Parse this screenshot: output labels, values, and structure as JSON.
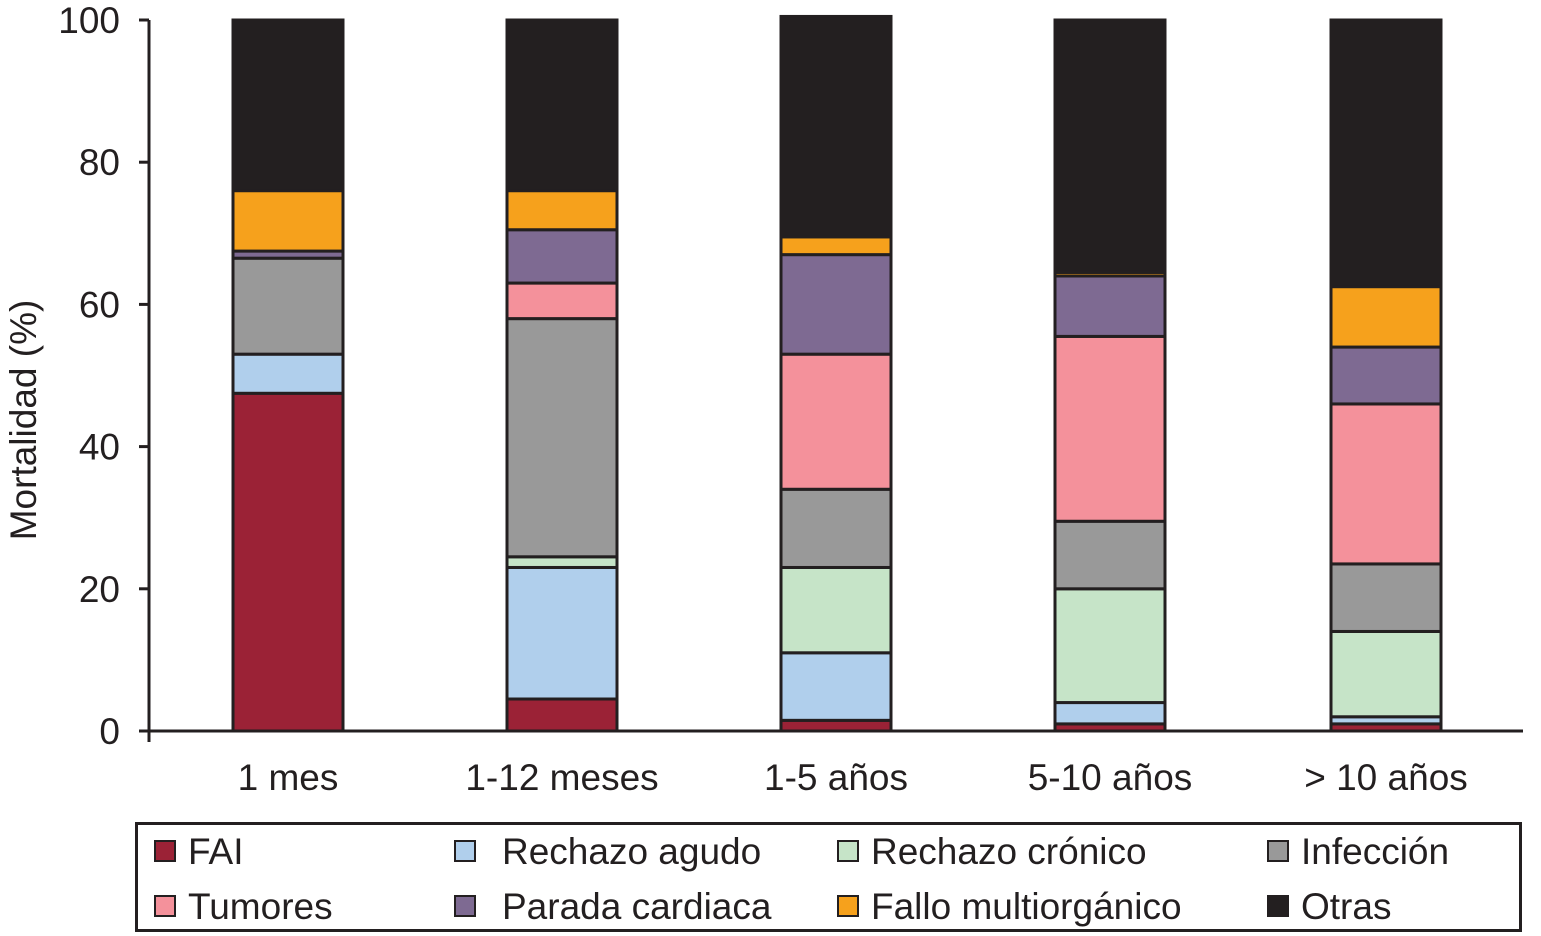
{
  "chart_data": {
    "type": "bar",
    "stacked": true,
    "title": "",
    "xlabel": "",
    "ylabel": "Mortalidad (%)",
    "ylim": [
      0,
      100
    ],
    "yticks": [
      0,
      20,
      40,
      60,
      80,
      100
    ],
    "grid": false,
    "legend_position": "bottom",
    "categories": [
      "1 mes",
      "1-12 meses",
      "1-5 años",
      "5-10 años",
      "> 10 años"
    ],
    "series": [
      {
        "name": "FAI",
        "color": "#9b2236",
        "values": [
          47.5,
          4.5,
          1.5,
          1.0,
          1.0
        ]
      },
      {
        "name": "Rechazo agudo",
        "color": "#b0cfec",
        "values": [
          5.5,
          18.5,
          9.5,
          3.0,
          1.0
        ]
      },
      {
        "name": "Rechazo crónico",
        "color": "#c6e4c8",
        "values": [
          0.0,
          1.5,
          12.0,
          16.0,
          12.0
        ]
      },
      {
        "name": "Infección",
        "color": "#999999",
        "values": [
          13.5,
          33.5,
          11.0,
          9.5,
          9.5
        ]
      },
      {
        "name": "Tumores",
        "color": "#f4919b",
        "values": [
          0.0,
          5.0,
          19.0,
          26.0,
          22.5
        ]
      },
      {
        "name": "Parada cardiaca",
        "color": "#7e6a92",
        "values": [
          1.0,
          7.5,
          14.0,
          8.5,
          8.0
        ]
      },
      {
        "name": "Fallo multiorgánico",
        "color": "#f6a11c",
        "values": [
          8.5,
          5.5,
          2.5,
          0.5,
          8.5
        ]
      },
      {
        "name": "Otras",
        "color": "#231f20",
        "values": [
          24.0,
          24.0,
          31.0,
          35.5,
          37.5
        ]
      }
    ]
  }
}
